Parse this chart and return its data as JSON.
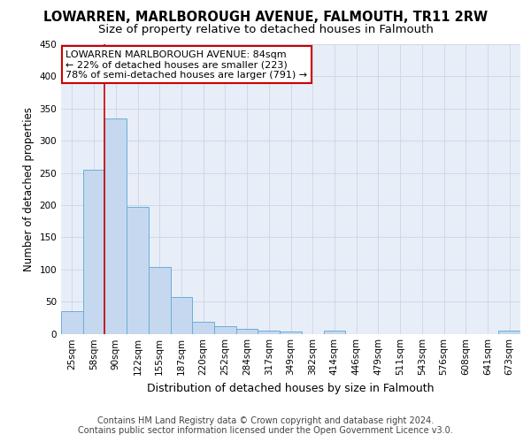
{
  "title": "LOWARREN, MARLBOROUGH AVENUE, FALMOUTH, TR11 2RW",
  "subtitle": "Size of property relative to detached houses in Falmouth",
  "xlabel": "Distribution of detached houses by size in Falmouth",
  "ylabel": "Number of detached properties",
  "categories": [
    "25sqm",
    "58sqm",
    "90sqm",
    "122sqm",
    "155sqm",
    "187sqm",
    "220sqm",
    "252sqm",
    "284sqm",
    "317sqm",
    "349sqm",
    "382sqm",
    "414sqm",
    "446sqm",
    "479sqm",
    "511sqm",
    "543sqm",
    "576sqm",
    "608sqm",
    "641sqm",
    "673sqm"
  ],
  "values": [
    35,
    255,
    335,
    197,
    104,
    57,
    19,
    11,
    7,
    5,
    4,
    0,
    5,
    0,
    0,
    0,
    0,
    0,
    0,
    0,
    5
  ],
  "bar_color": "#c5d8ef",
  "bar_edge_color": "#6baed6",
  "vline_x": 1.5,
  "vline_color": "#cc0000",
  "annotation_line1": "LOWARREN MARLBOROUGH AVENUE: 84sqm",
  "annotation_line2": "← 22% of detached houses are smaller (223)",
  "annotation_line3": "78% of semi-detached houses are larger (791) →",
  "annotation_box_color": "#ffffff",
  "annotation_box_edge_color": "#cc0000",
  "grid_color": "#d0d8e8",
  "background_color": "#e8eef8",
  "ylim": [
    0,
    450
  ],
  "yticks": [
    0,
    50,
    100,
    150,
    200,
    250,
    300,
    350,
    400,
    450
  ],
  "footer_line1": "Contains HM Land Registry data © Crown copyright and database right 2024.",
  "footer_line2": "Contains public sector information licensed under the Open Government Licence v3.0.",
  "title_fontsize": 10.5,
  "subtitle_fontsize": 9.5,
  "xlabel_fontsize": 9,
  "ylabel_fontsize": 8.5,
  "tick_fontsize": 7.5,
  "annotation_fontsize": 8,
  "footer_fontsize": 7
}
